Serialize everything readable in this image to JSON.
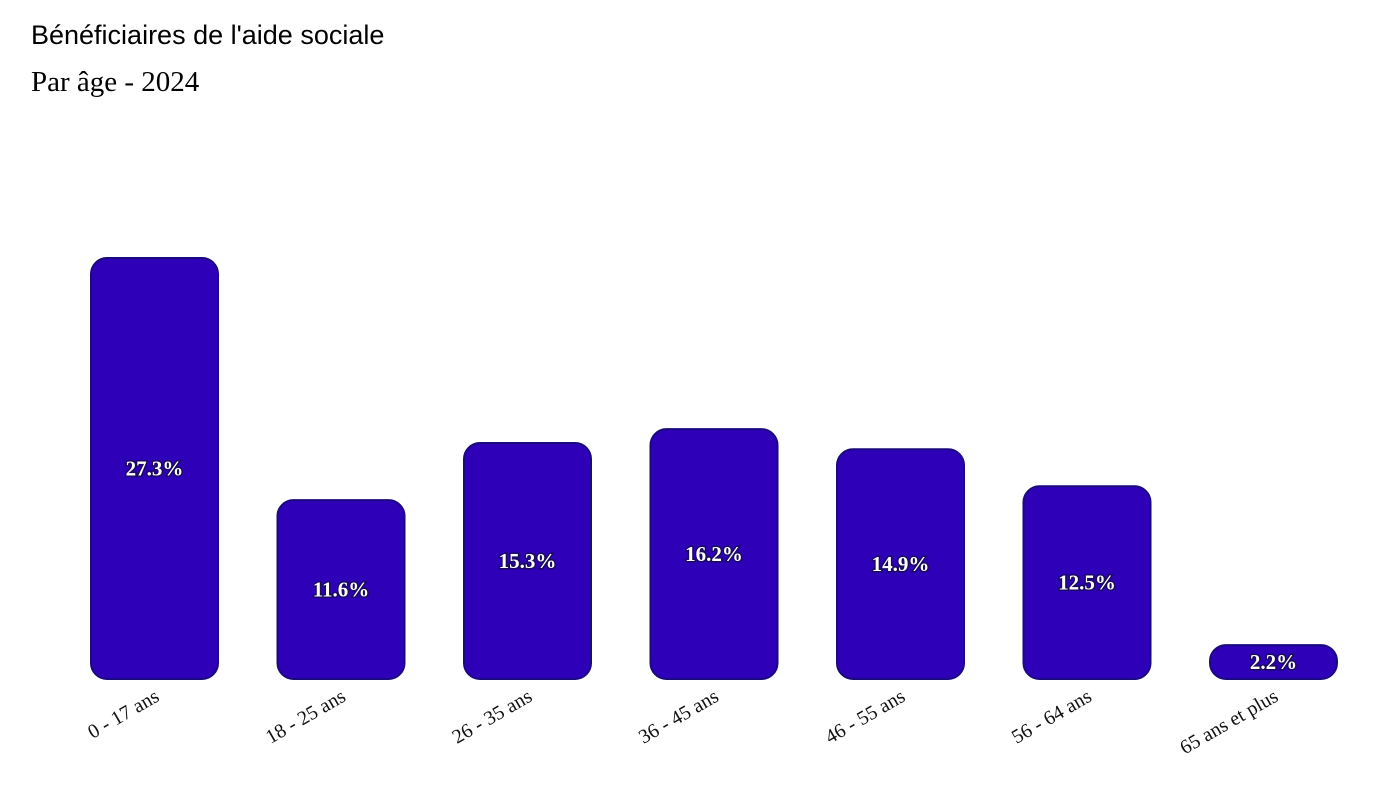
{
  "chart_data": {
    "type": "bar",
    "title": "Bénéficiaires de l'aide sociale",
    "subtitle": "Par âge - 2024",
    "categories": [
      "0 - 17 ans",
      "18 - 25 ans",
      "26 - 35 ans",
      "36 - 45 ans",
      "46 - 55 ans",
      "56 - 64 ans",
      "65 ans et plus"
    ],
    "values": [
      27.3,
      11.6,
      15.3,
      16.2,
      14.9,
      12.5,
      2.2
    ],
    "value_labels": [
      "27.3%",
      "11.6%",
      "15.3%",
      "16.2%",
      "14.9%",
      "12.5%",
      "2.2%"
    ],
    "unit": "%",
    "xlabel": "",
    "ylabel": "",
    "ylim": [
      0,
      27.3
    ],
    "grid": false,
    "bar_color": "#2e00b8"
  }
}
